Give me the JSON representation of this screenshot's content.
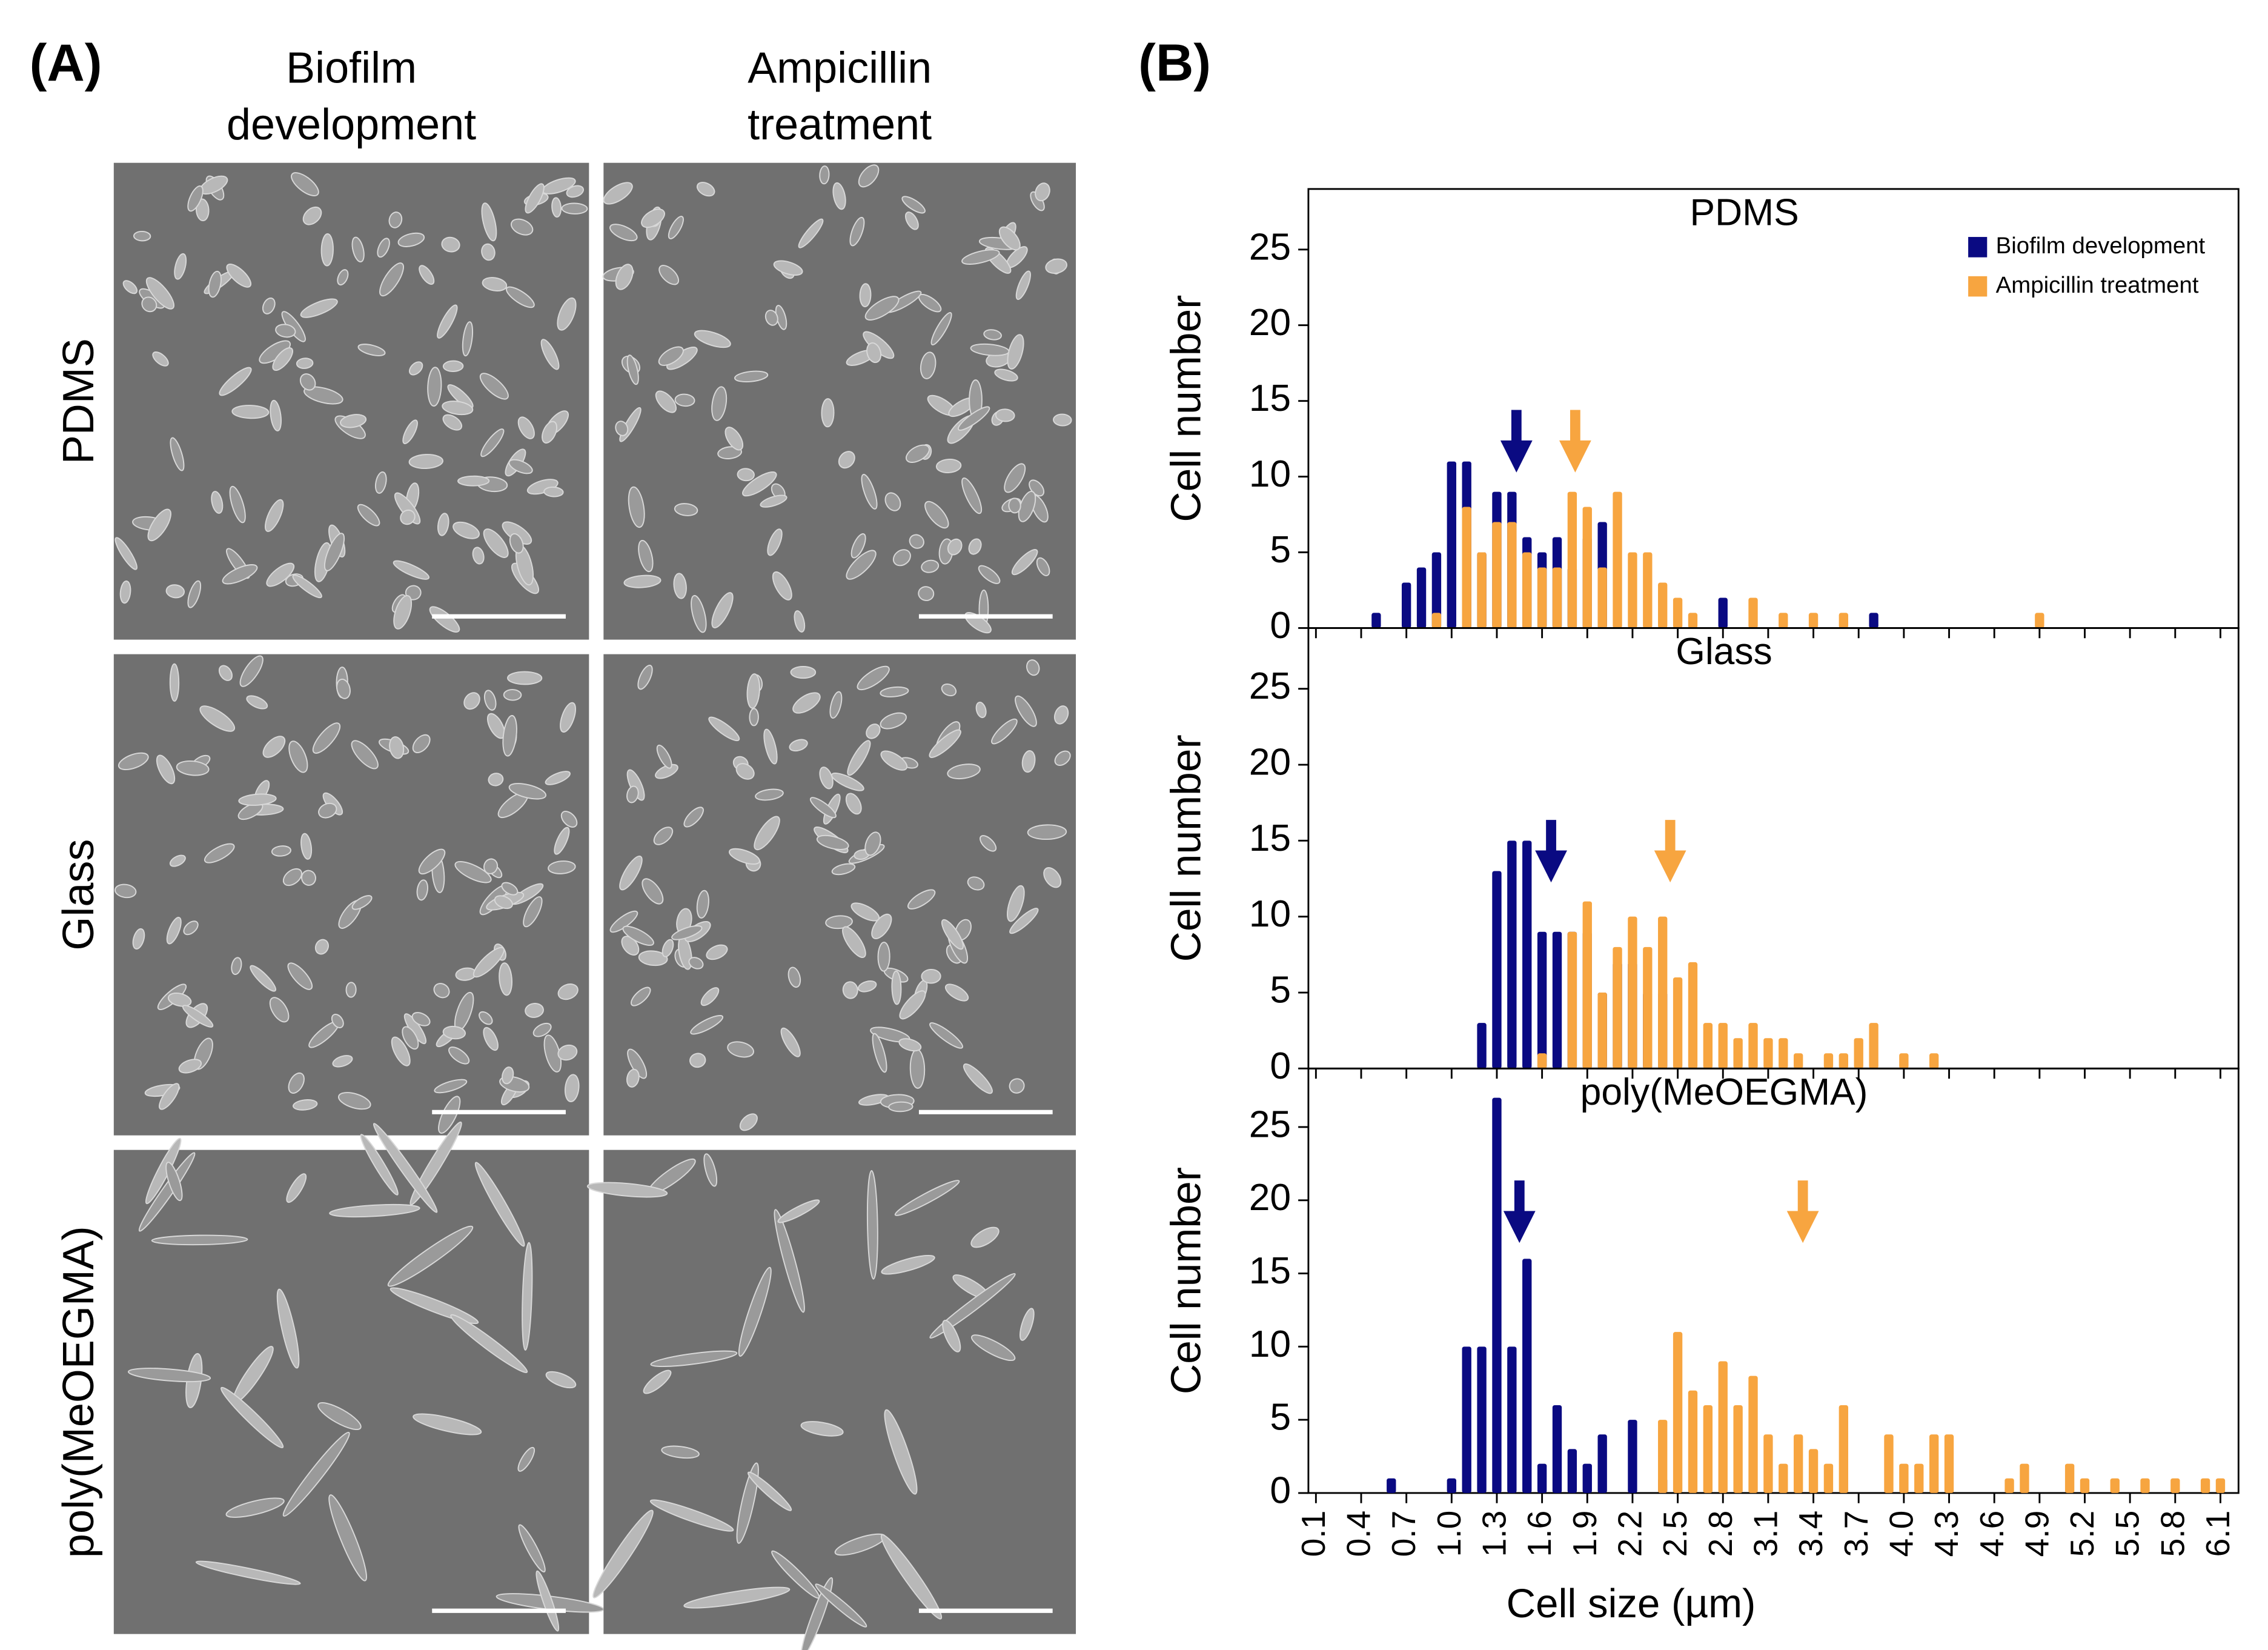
{
  "panel_a": {
    "label": "(A)",
    "columns": [
      [
        "Biofilm",
        "development"
      ],
      [
        "Ampicillin",
        "treatment"
      ]
    ],
    "rows": [
      "PDMS",
      "Glass",
      "poly(MeOEGMA)"
    ]
  },
  "panel_b": {
    "label": "(B)"
  },
  "chart_data": [
    {
      "type": "histogram",
      "title": "PDMS",
      "y_label": "Cell number",
      "legend": "upper right",
      "xtick_labels": false,
      "xlim": [
        0.05,
        6.22
      ],
      "ylim": [
        0,
        29
      ],
      "yticks": [
        0,
        5,
        10,
        15,
        20,
        25
      ],
      "xticks": [
        0.1,
        0.4,
        0.7,
        {
          "value": 1,
          "label": "1.0"
        },
        1.3,
        1.6,
        1.9,
        2.2,
        2.5,
        2.8,
        3.1,
        3.4,
        3.7,
        {
          "value": 4,
          "label": "4.0"
        },
        4.3,
        4.6,
        4.9,
        5.2,
        5.5,
        5.8,
        6.1
      ],
      "series": [
        {
          "name": "Biofilm development",
          "color": "#0a0a82",
          "mean": 1.43,
          "x": [
            0.5,
            0.7,
            0.8,
            0.9,
            1.0,
            1.1,
            1.2,
            1.3,
            1.4,
            1.5,
            1.6,
            1.7,
            1.8,
            1.9,
            2.0,
            2.8,
            3.8
          ],
          "values": [
            1,
            3,
            4,
            5,
            11,
            11,
            5,
            9,
            9,
            6,
            5,
            6,
            4,
            6,
            7,
            2,
            1
          ]
        },
        {
          "name": "Ampicillin treatment",
          "color": "#f7a540",
          "mean": 1.82,
          "x": [
            0.9,
            1.1,
            1.2,
            1.3,
            1.4,
            1.5,
            1.6,
            1.7,
            1.8,
            1.9,
            2.0,
            2.1,
            2.2,
            2.3,
            2.4,
            2.5,
            2.6,
            3.0,
            3.2,
            3.4,
            3.6,
            4.9
          ],
          "values": [
            1,
            8,
            5,
            7,
            7,
            5,
            4,
            4,
            9,
            8,
            4,
            9,
            5,
            5,
            3,
            2,
            1,
            2,
            1,
            1,
            1,
            1
          ]
        }
      ]
    },
    {
      "type": "histogram",
      "title": "Glass",
      "y_label": "Cell number",
      "xtick_labels": false,
      "xlim": [
        0.05,
        6.22
      ],
      "ylim": [
        0,
        29
      ],
      "yticks": [
        0,
        5,
        10,
        15,
        20,
        25
      ],
      "xticks": [
        0.1,
        0.4,
        0.7,
        {
          "value": 1,
          "label": "1.0"
        },
        1.3,
        1.6,
        1.9,
        2.2,
        2.5,
        2.8,
        3.1,
        3.4,
        3.7,
        {
          "value": 4,
          "label": "4.0"
        },
        4.3,
        4.6,
        4.9,
        5.2,
        5.5,
        5.8,
        6.1
      ],
      "series": [
        {
          "color": "#0a0a82",
          "mean": 1.66,
          "x": [
            1.2,
            1.3,
            1.4,
            1.5,
            1.6,
            1.7,
            1.8,
            1.9,
            2.0,
            2.1,
            2.2,
            2.3,
            2.4
          ],
          "values": [
            3,
            13,
            15,
            15,
            9,
            9,
            9,
            9,
            5,
            7,
            7,
            5,
            5
          ]
        },
        {
          "color": "#f7a540",
          "mean": 2.45,
          "x": [
            1.6,
            1.8,
            1.9,
            2.0,
            2.1,
            2.2,
            2.3,
            2.4,
            2.5,
            2.6,
            2.7,
            2.8,
            2.9,
            3.0,
            3.1,
            3.2,
            3.3,
            3.5,
            3.6,
            3.7,
            3.8,
            4.0,
            4.2
          ],
          "values": [
            1,
            9,
            11,
            5,
            8,
            10,
            8,
            10,
            6,
            7,
            3,
            3,
            2,
            3,
            2,
            2,
            1,
            1,
            1,
            2,
            3,
            1,
            1
          ]
        }
      ]
    },
    {
      "type": "histogram",
      "title": "poly(MeOEGMA)",
      "y_label": "Cell number",
      "x_label": "Cell size (µm)",
      "xtick_labels": true,
      "xlim": [
        0.05,
        6.22
      ],
      "ylim": [
        0,
        29
      ],
      "yticks": [
        0,
        5,
        10,
        15,
        20,
        25
      ],
      "xticks": [
        0.1,
        0.4,
        0.7,
        {
          "value": 1,
          "label": "1.0"
        },
        1.3,
        1.6,
        1.9,
        2.2,
        2.5,
        2.8,
        3.1,
        3.4,
        3.7,
        {
          "value": 4,
          "label": "4.0"
        },
        4.3,
        4.6,
        4.9,
        5.2,
        5.5,
        5.8,
        6.1
      ],
      "series": [
        {
          "color": "#0a0a82",
          "mean": 1.45,
          "x": [
            0.6,
            1.0,
            1.1,
            1.2,
            1.3,
            1.4,
            1.5,
            1.6,
            1.7,
            1.8,
            1.9,
            2.0,
            2.2,
            2.4
          ],
          "values": [
            1,
            1,
            10,
            10,
            27,
            10,
            16,
            2,
            6,
            3,
            2,
            4,
            5,
            1
          ]
        },
        {
          "color": "#f7a540",
          "mean": 3.33,
          "x": [
            2.4,
            2.5,
            2.6,
            2.7,
            2.8,
            2.9,
            3.0,
            3.1,
            3.2,
            3.3,
            3.4,
            3.5,
            3.6,
            3.9,
            4.0,
            4.1,
            4.2,
            4.3,
            4.7,
            4.8,
            5.1,
            5.2,
            5.4,
            5.6,
            5.8,
            6.0,
            6.1
          ],
          "values": [
            5,
            11,
            7,
            6,
            9,
            6,
            8,
            4,
            2,
            4,
            3,
            2,
            6,
            4,
            2,
            2,
            4,
            4,
            1,
            2,
            2,
            1,
            1,
            1,
            1,
            1,
            1
          ]
        }
      ]
    }
  ]
}
